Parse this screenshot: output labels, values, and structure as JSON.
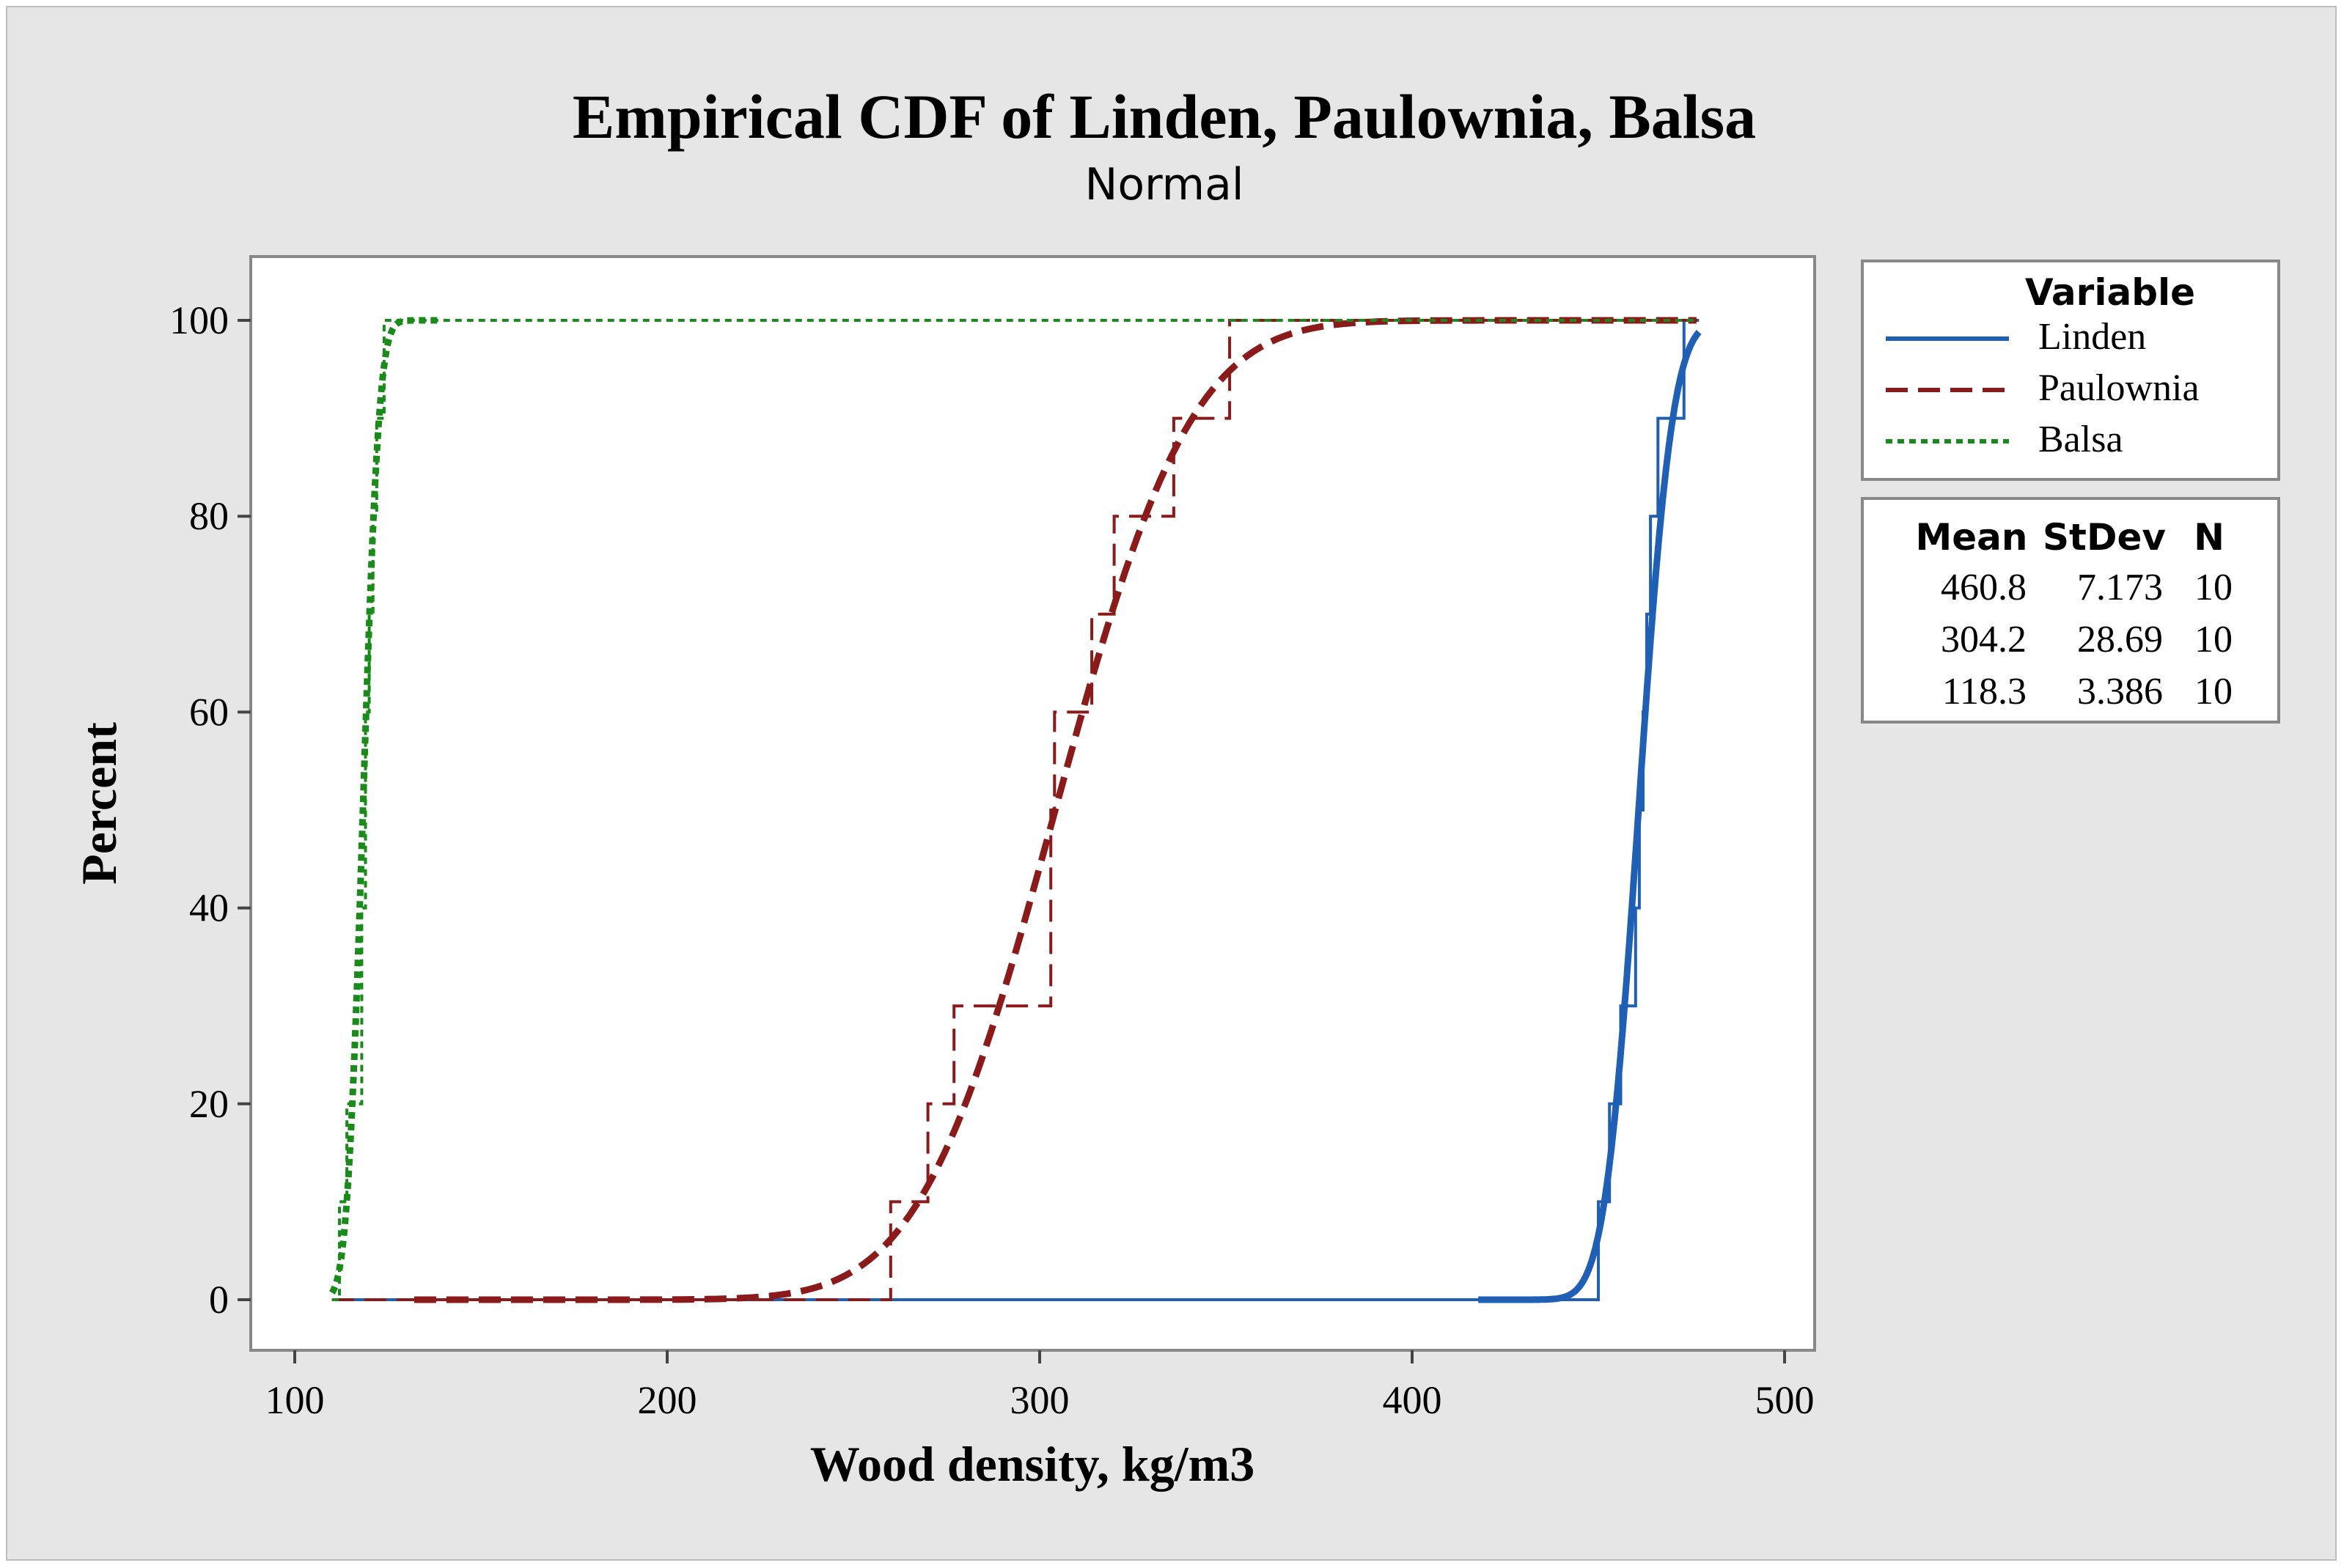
{
  "chart_data": {
    "type": "line",
    "title": "Empirical CDF of Linden, Paulownia, Balsa",
    "subtitle": "Normal",
    "xlabel": "Wood density, kg/m3",
    "ylabel": "Percent",
    "xlim": [
      100,
      500
    ],
    "ylim": [
      0,
      100
    ],
    "xticks": [
      100,
      200,
      300,
      400,
      500
    ],
    "yticks": [
      0,
      20,
      40,
      60,
      80,
      100
    ],
    "grid": false,
    "legend": {
      "title": "Variable",
      "placement": "right",
      "stats_headers": [
        "Mean",
        "StDev",
        "N"
      ]
    },
    "series": [
      {
        "name": "Linden",
        "color": "#1f5fb4",
        "style": "solid",
        "fit": {
          "distribution": "Normal",
          "mean": 460.8,
          "stdev": 7.173,
          "n": 10
        },
        "stats_text": [
          "460.8",
          "7.173",
          "10"
        ],
        "ecdf_points": [
          [
            450,
            10
          ],
          [
            453,
            20
          ],
          [
            456,
            30
          ],
          [
            460,
            40
          ],
          [
            461,
            50
          ],
          [
            462,
            60
          ],
          [
            463,
            70
          ],
          [
            464,
            80
          ],
          [
            466,
            90
          ],
          [
            473,
            100
          ]
        ]
      },
      {
        "name": "Paulownia",
        "color": "#8b1a1a",
        "style": "dashed",
        "fit": {
          "distribution": "Normal",
          "mean": 304.2,
          "stdev": 28.69,
          "n": 10
        },
        "stats_text": [
          "304.2",
          "28.69",
          "10"
        ],
        "ecdf_points": [
          [
            260,
            10
          ],
          [
            270,
            20
          ],
          [
            277,
            30
          ],
          [
            303,
            50
          ],
          [
            304,
            60
          ],
          [
            314,
            70
          ],
          [
            320,
            80
          ],
          [
            336,
            90
          ],
          [
            351,
            100
          ]
        ]
      },
      {
        "name": "Balsa",
        "color": "#1a8a1a",
        "style": "dotted",
        "fit": {
          "distribution": "Normal",
          "mean": 118.3,
          "stdev": 3.386,
          "n": 10
        },
        "stats_text": [
          "118.3",
          "3.386",
          "10"
        ],
        "ecdf_points": [
          [
            112,
            10
          ],
          [
            114,
            20
          ],
          [
            118,
            40
          ],
          [
            119,
            60
          ],
          [
            120,
            70
          ],
          [
            121,
            80
          ],
          [
            122,
            90
          ],
          [
            124,
            100
          ]
        ]
      }
    ]
  }
}
